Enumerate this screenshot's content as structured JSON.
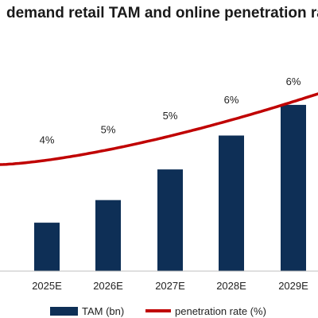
{
  "chart_data": {
    "type": "bar",
    "title": "demand retail TAM and online penetration rate",
    "categories": [
      "2025E",
      "2026E",
      "2027E",
      "2028E",
      "2029E"
    ],
    "series": [
      {
        "name": "TAM (bn)",
        "type": "bar",
        "color": "#0e2f56",
        "values": [
          30,
          44,
          63,
          84,
          103
        ]
      },
      {
        "name": "penetration rate (%)",
        "type": "line",
        "color": "#c00000",
        "values": [
          4,
          5,
          5,
          6,
          6
        ]
      }
    ],
    "legend": {
      "position": "bottom"
    },
    "grid": false
  }
}
